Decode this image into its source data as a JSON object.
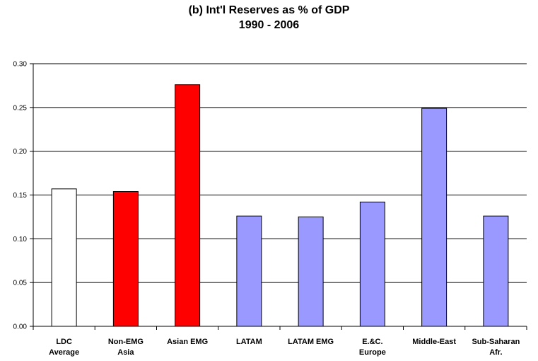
{
  "chart_data": {
    "type": "bar",
    "title": "(b) Int'l Reserves as % of GDP",
    "subtitle": "1990 - 2006",
    "xlabel": "",
    "ylabel": "",
    "ylim": [
      0,
      0.3
    ],
    "yticks": [
      "0.00",
      "0.05",
      "0.10",
      "0.15",
      "0.20",
      "0.25",
      "0.30"
    ],
    "grid": true,
    "categories": [
      [
        "LDC",
        "Average"
      ],
      [
        "Non-EMG",
        "Asia"
      ],
      [
        "Asian EMG"
      ],
      [
        "LATAM"
      ],
      [
        "LATAM EMG"
      ],
      [
        "E.&C.",
        "Europe"
      ],
      [
        "Middle-East"
      ],
      [
        "Sub-Saharan",
        "Afr."
      ]
    ],
    "values": [
      0.157,
      0.154,
      0.276,
      0.126,
      0.125,
      0.142,
      0.249,
      0.126
    ],
    "bar_colors": [
      "#ffffff",
      "#ff0000",
      "#ff0000",
      "#9999ff",
      "#9999ff",
      "#9999ff",
      "#9999ff",
      "#9999ff"
    ]
  }
}
